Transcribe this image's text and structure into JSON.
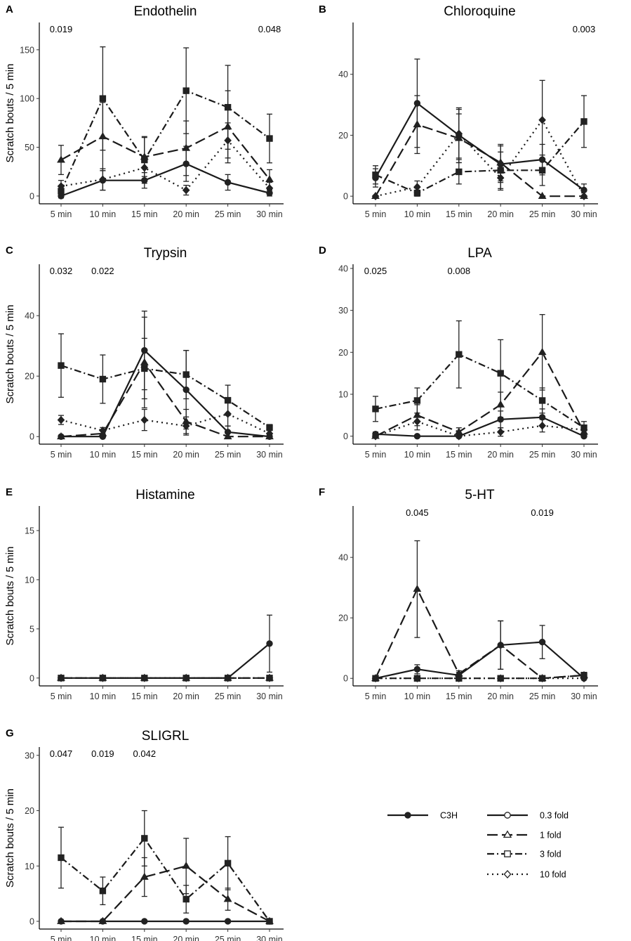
{
  "figure": {
    "common_ylabel": "Scratch bouts / 5 min",
    "x_categories": [
      "5 min",
      "10 min",
      "15 min",
      "20 min",
      "25 min",
      "30 min"
    ]
  },
  "legend": {
    "entries": [
      {
        "label": "C3H",
        "series": "C3H",
        "marker": "circle",
        "filled": true
      },
      {
        "label": "0.3 fold",
        "series": "0.3 fold",
        "marker": "circle",
        "filled": false
      },
      {
        "label": "1 fold",
        "series": "1 fold",
        "marker": "triangle",
        "filled": false
      },
      {
        "label": "3 fold",
        "series": "3 fold",
        "marker": "square",
        "filled": false
      },
      {
        "label": "10 fold",
        "series": "10 fold",
        "marker": "diamond",
        "filled": false
      }
    ]
  },
  "chart_data": [
    {
      "type": "line",
      "letter": "A",
      "title": "Endothelin",
      "xlabel": "",
      "ylabel": "Scratch bouts / 5 min",
      "categories": [
        "5 min",
        "10 min",
        "15 min",
        "20 min",
        "25 min",
        "30 min"
      ],
      "ylim": [
        -8,
        178
      ],
      "yticks": [
        0,
        50,
        100,
        150
      ],
      "annotations": [
        {
          "text": "0.019",
          "category_index": 0
        },
        {
          "text": "0.048",
          "category_index": 5
        }
      ],
      "series": [
        {
          "name": "C3H",
          "values": [
            0,
            16,
            16,
            33,
            14,
            3
          ],
          "errors": [
            2,
            10,
            8,
            18,
            8,
            3
          ]
        },
        {
          "name": "1 fold",
          "values": [
            37,
            61,
            40,
            49,
            71,
            17
          ],
          "errors": [
            15,
            35,
            20,
            28,
            37,
            10
          ]
        },
        {
          "name": "3 fold",
          "values": [
            5,
            100,
            37,
            108,
            91,
            59
          ],
          "errors": [
            5,
            53,
            24,
            44,
            43,
            25
          ]
        },
        {
          "name": "10 fold",
          "values": [
            10,
            17,
            29,
            6,
            57,
            8
          ],
          "errors": [
            6,
            11,
            12,
            5,
            18,
            6
          ]
        }
      ]
    },
    {
      "type": "line",
      "letter": "B",
      "title": "Chloroquine",
      "xlabel": "",
      "ylabel": "",
      "categories": [
        "5 min",
        "10 min",
        "15 min",
        "20 min",
        "25 min",
        "30 min"
      ],
      "ylim": [
        -2.5,
        57
      ],
      "yticks": [
        0,
        20,
        40
      ],
      "annotations": [
        {
          "text": "0.003",
          "category_index": 5
        }
      ],
      "series": [
        {
          "name": "C3H",
          "values": [
            6,
            30.5,
            20,
            10.5,
            12,
            2
          ],
          "errors": [
            3,
            14.5,
            9,
            6,
            5,
            2
          ]
        },
        {
          "name": "1 fold",
          "values": [
            0,
            23.5,
            19,
            11,
            0,
            0
          ],
          "errors": [
            0,
            9.5,
            8,
            6,
            0,
            0
          ]
        },
        {
          "name": "3 fold",
          "values": [
            7,
            1,
            8,
            8.5,
            8.5,
            24.5
          ],
          "errors": [
            3,
            1,
            4,
            6,
            5,
            8.5
          ]
        },
        {
          "name": "10 fold",
          "values": [
            0,
            3,
            20.5,
            6,
            25,
            0
          ],
          "errors": [
            0,
            2,
            8,
            4,
            13,
            0
          ]
        }
      ]
    },
    {
      "type": "line",
      "letter": "C",
      "title": "Trypsin",
      "xlabel": "",
      "ylabel": "Scratch bouts / 5 min",
      "categories": [
        "5 min",
        "10 min",
        "15 min",
        "20 min",
        "25 min",
        "30 min"
      ],
      "ylim": [
        -2.5,
        57
      ],
      "yticks": [
        0,
        20,
        40
      ],
      "annotations": [
        {
          "text": "0.032",
          "category_index": 0
        },
        {
          "text": "0.022",
          "category_index": 1
        }
      ],
      "series": [
        {
          "name": "C3H",
          "values": [
            0,
            0,
            28.5,
            15.5,
            1.5,
            0
          ],
          "errors": [
            0,
            0,
            13,
            13,
            2,
            0
          ]
        },
        {
          "name": "1 fold",
          "values": [
            0,
            1,
            24.5,
            5,
            0,
            0
          ],
          "errors": [
            0,
            1,
            15,
            4,
            0,
            0
          ]
        },
        {
          "name": "3 fold",
          "values": [
            23.5,
            19,
            22.5,
            20.5,
            12,
            3
          ],
          "errors": [
            10.5,
            8,
            10,
            8,
            5,
            1
          ]
        },
        {
          "name": "10 fold",
          "values": [
            5.5,
            2,
            5.5,
            3.5,
            7.5,
            1
          ],
          "errors": [
            1.5,
            1,
            3.5,
            3,
            4,
            1
          ]
        }
      ]
    },
    {
      "type": "line",
      "letter": "D",
      "title": "LPA",
      "xlabel": "",
      "ylabel": "",
      "categories": [
        "5 min",
        "10 min",
        "15 min",
        "20 min",
        "25 min",
        "30 min"
      ],
      "ylim": [
        -1.9,
        41
      ],
      "yticks": [
        0,
        10,
        20,
        30,
        40
      ],
      "annotations": [
        {
          "text": "0.025",
          "category_index": 0
        },
        {
          "text": "0.008",
          "category_index": 2
        }
      ],
      "series": [
        {
          "name": "C3H",
          "values": [
            0.5,
            0,
            0,
            4,
            4.5,
            0
          ],
          "errors": [
            0.5,
            0,
            0,
            2,
            2,
            0
          ]
        },
        {
          "name": "1 fold",
          "values": [
            0,
            5,
            1,
            7.5,
            20,
            1
          ],
          "errors": [
            0,
            2.5,
            1,
            3,
            9,
            1
          ]
        },
        {
          "name": "3 fold",
          "values": [
            6.5,
            8.5,
            19.5,
            15,
            8.5,
            2
          ],
          "errors": [
            3,
            3,
            8,
            8,
            3,
            1.5
          ]
        },
        {
          "name": "10 fold",
          "values": [
            0,
            3.5,
            0,
            1,
            2.5,
            1.5
          ],
          "errors": [
            0,
            2,
            0,
            1,
            1.5,
            1
          ]
        }
      ]
    },
    {
      "type": "line",
      "letter": "E",
      "title": "Histamine",
      "xlabel": "",
      "ylabel": "Scratch bouts / 5 min",
      "categories": [
        "5 min",
        "10 min",
        "15 min",
        "20 min",
        "25 min",
        "30 min"
      ],
      "ylim": [
        -0.8,
        17.5
      ],
      "yticks": [
        0,
        5,
        10,
        15
      ],
      "annotations": [],
      "series": [
        {
          "name": "C3H",
          "values": [
            0,
            0,
            0,
            0,
            0,
            3.5
          ],
          "errors": [
            0,
            0,
            0,
            0,
            0,
            2.9
          ]
        },
        {
          "name": "1 fold",
          "values": [
            0,
            0,
            0,
            0,
            0,
            0
          ],
          "errors": [
            0,
            0,
            0,
            0,
            0,
            0
          ]
        },
        {
          "name": "3 fold",
          "values": [
            0,
            0,
            0,
            0,
            0,
            0
          ],
          "errors": [
            0,
            0,
            0,
            0,
            0,
            0
          ]
        },
        {
          "name": "10 fold",
          "values": [
            0,
            0,
            0,
            0,
            0,
            0
          ],
          "errors": [
            0,
            0,
            0,
            0,
            0,
            0
          ]
        }
      ]
    },
    {
      "type": "line",
      "letter": "F",
      "title": "5-HT",
      "xlabel": "",
      "ylabel": "",
      "categories": [
        "5 min",
        "10 min",
        "15 min",
        "20 min",
        "25 min",
        "30 min"
      ],
      "ylim": [
        -2.5,
        57
      ],
      "yticks": [
        0,
        20,
        40
      ],
      "annotations": [
        {
          "text": "0.045",
          "category_index": 1
        },
        {
          "text": "0.019",
          "category_index": 4
        }
      ],
      "series": [
        {
          "name": "C3H",
          "values": [
            0,
            3,
            1,
            11,
            12,
            0
          ],
          "errors": [
            0,
            1.5,
            1,
            8,
            5.5,
            0
          ]
        },
        {
          "name": "1 fold",
          "values": [
            0,
            29.5,
            1.5,
            11,
            0,
            1
          ],
          "errors": [
            0,
            16,
            1,
            8,
            0,
            1
          ]
        },
        {
          "name": "3 fold",
          "values": [
            0,
            0,
            0,
            0,
            0,
            1
          ],
          "errors": [
            0,
            0,
            0,
            0,
            0,
            0.5
          ]
        },
        {
          "name": "10 fold",
          "values": [
            0,
            0,
            0,
            0,
            0,
            0
          ],
          "errors": [
            0,
            0,
            0,
            0,
            0,
            0
          ]
        }
      ]
    },
    {
      "type": "line",
      "letter": "G",
      "title": "SLIGRL",
      "xlabel": "",
      "ylabel": "Scratch bouts / 5 min",
      "categories": [
        "5 min",
        "10 min",
        "15 min",
        "20 min",
        "25 min",
        "30 min"
      ],
      "ylim": [
        -1.4,
        31.5
      ],
      "yticks": [
        0,
        10,
        20,
        30
      ],
      "annotations": [
        {
          "text": "0.047",
          "category_index": 0
        },
        {
          "text": "0.019",
          "category_index": 1
        },
        {
          "text": "0.042",
          "category_index": 2
        }
      ],
      "series": [
        {
          "name": "C3H",
          "values": [
            0,
            0,
            0,
            0,
            0,
            0
          ],
          "errors": [
            0,
            0,
            0,
            0,
            0,
            0
          ]
        },
        {
          "name": "1 fold",
          "values": [
            0,
            0,
            8,
            10,
            4,
            0
          ],
          "errors": [
            0,
            0,
            3.5,
            5,
            2,
            0
          ]
        },
        {
          "name": "3 fold",
          "values": [
            11.5,
            5.5,
            15,
            4,
            10.5,
            0
          ],
          "errors": [
            5.5,
            2.5,
            5,
            2.5,
            4.8,
            0
          ]
        }
      ]
    }
  ]
}
